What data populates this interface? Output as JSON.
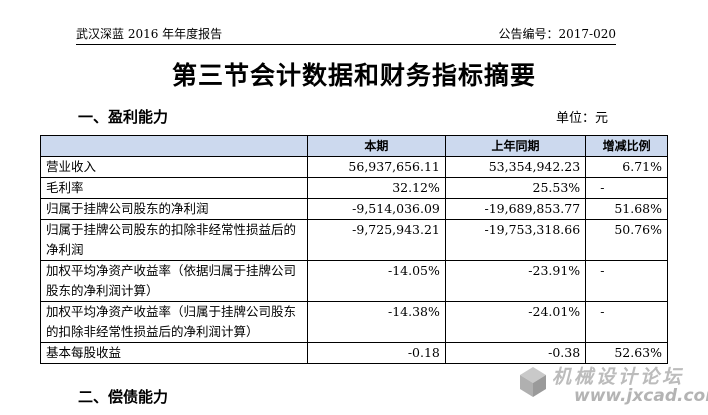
{
  "header": {
    "report_name": "武汉深蓝 2016 年年度报告",
    "announcement_no": "公告编号：2017-020"
  },
  "title": "第三节会计数据和财务指标摘要",
  "section1": {
    "heading": "一、盈利能力",
    "unit": "单位：元"
  },
  "table": {
    "headers": [
      "",
      "本期",
      "上年同期",
      "增减比例"
    ],
    "rows": [
      {
        "label": "营业收入",
        "current": "56,937,656.11",
        "previous": "53,354,942.23",
        "change": "6.71%"
      },
      {
        "label": "毛利率",
        "current": "32.12%",
        "previous": "25.53%",
        "change": "-"
      },
      {
        "label": "归属于挂牌公司股东的净利润",
        "current": "-9,514,036.09",
        "previous": "-19,689,853.77",
        "change": "51.68%"
      },
      {
        "label": "归属于挂牌公司股东的扣除非经常性损益后的净利润",
        "current": "-9,725,943.21",
        "previous": "-19,753,318.66",
        "change": "50.76%"
      },
      {
        "label": "加权平均净资产收益率（依据归属于挂牌公司股东的净利润计算）",
        "current": "-14.05%",
        "previous": "-23.91%",
        "change": "-"
      },
      {
        "label": "加权平均净资产收益率（归属于挂牌公司股东的扣除非经常性损益后的净利润计算）",
        "current": "-14.38%",
        "previous": "-24.01%",
        "change": "-"
      },
      {
        "label": "基本每股收益",
        "current": "-0.18",
        "previous": "-0.38",
        "change": "52.63%"
      }
    ]
  },
  "section2": {
    "heading": "二、偿债能力"
  },
  "watermark": {
    "text": "机械设计论坛",
    "url": "www.jxcad.com"
  }
}
